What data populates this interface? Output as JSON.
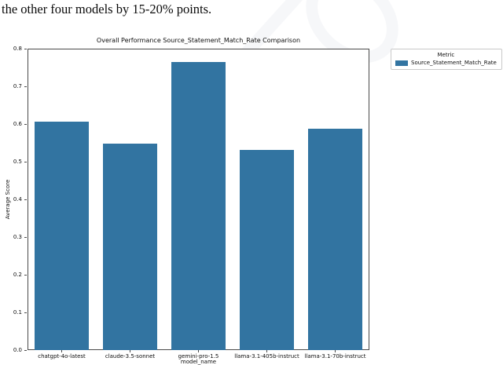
{
  "caption": "the other four models by 15-20% points.",
  "chart_data": {
    "type": "bar",
    "title": "Overall Performance Source_Statement_Match_Rate Comparison",
    "xlabel": "model_name",
    "ylabel": "Average Score",
    "categories": [
      "chatgpt-4o-latest",
      "claude-3.5-sonnet",
      "gemini-pro-1.5",
      "llama-3.1-405b-instruct",
      "llama-3.1-70b-instruct"
    ],
    "values": [
      0.607,
      0.548,
      0.765,
      0.531,
      0.587
    ],
    "ylim": [
      0.0,
      0.8
    ],
    "yticks": [
      0.0,
      0.1,
      0.2,
      0.3,
      0.4,
      0.5,
      0.6,
      0.7,
      0.8
    ],
    "grid": false,
    "bar_color": "#3274a1",
    "legend": {
      "title": "Metric",
      "position": "outside-upper-right",
      "entries": [
        {
          "label": "Source_Statement_Match_Rate",
          "color": "#3274a1"
        }
      ]
    }
  }
}
